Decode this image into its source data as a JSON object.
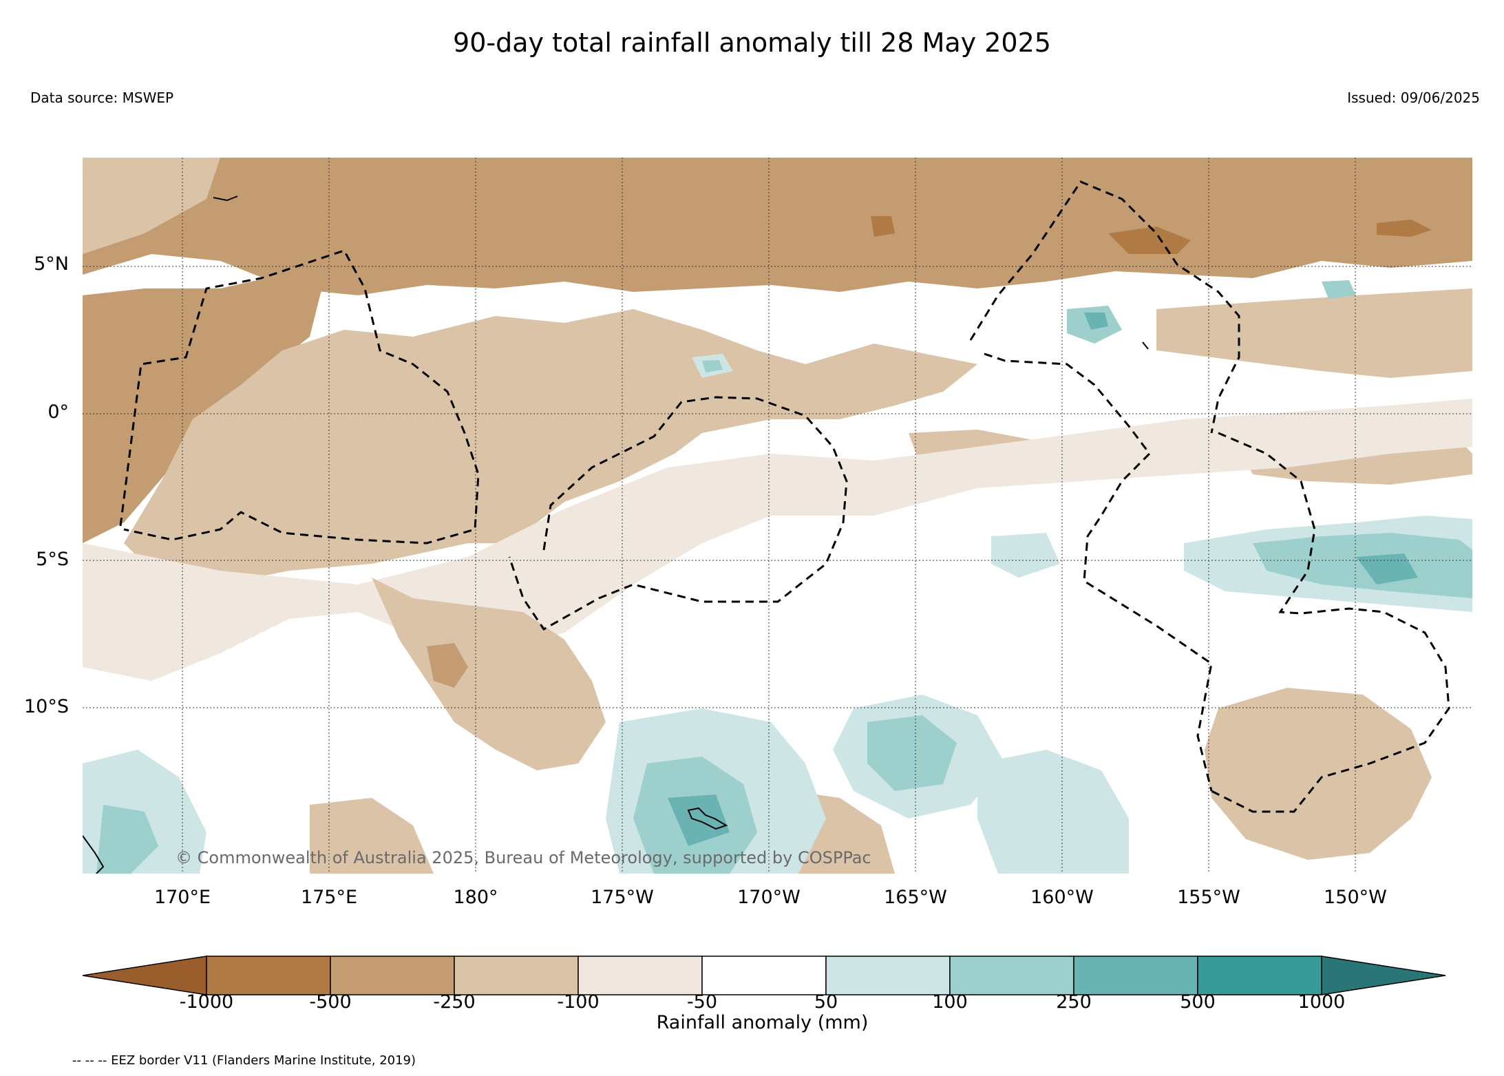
{
  "title": "90-day total rainfall anomaly till 28 May 2025",
  "data_source": "Data source: MSWEP",
  "issued": "Issued: 09/06/2025",
  "copyright": "© Commonwealth of Australia 2025, Bureau of Meteorology, supported by COSPPac",
  "latitude_labels": [
    "5°N",
    "0°",
    "5°S",
    "10°S"
  ],
  "longitude_labels": [
    "170°E",
    "175°E",
    "180°",
    "175°W",
    "170°W",
    "165°W",
    "160°W",
    "155°W",
    "150°W"
  ],
  "colorbar": {
    "title": "Rainfall anomaly (mm)",
    "tick_labels": [
      "-1000",
      "-500",
      "-250",
      "-100",
      "-50",
      "50",
      "100",
      "250",
      "500",
      "1000"
    ],
    "colors": [
      "#9a5e2c",
      "#b07a44",
      "#c49c72",
      "#dbc3a8",
      "#f0e7de",
      "#ffffff",
      "#cde5e4",
      "#9dcfcd",
      "#6ab3b3",
      "#379b98",
      "#2a7677"
    ]
  },
  "legend_note": "-- -- -- EEZ border V11 (Flanders Marine Institute, 2019)"
}
